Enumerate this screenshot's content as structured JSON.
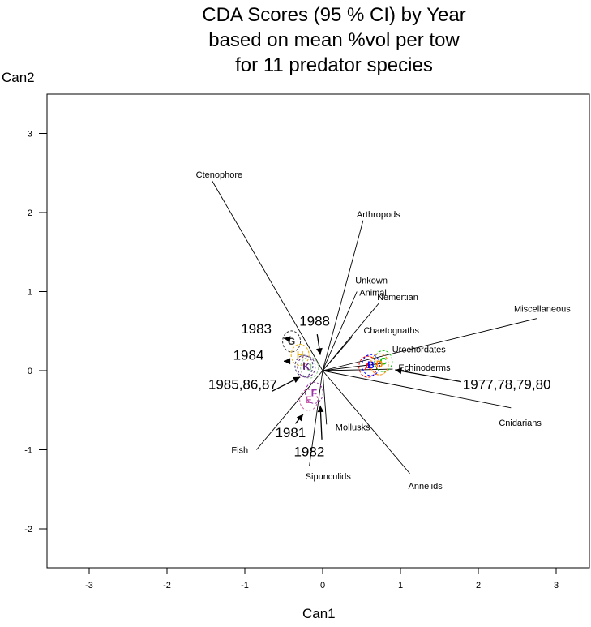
{
  "chart_data": {
    "type": "scatter",
    "title": [
      "CDA Scores (95 % CI) by Year",
      "based on mean %vol per tow",
      "for 11 predator species"
    ],
    "xlabel": "Can1",
    "ylabel": "Can2",
    "xlim": [
      -3.5,
      3.5
    ],
    "ylim": [
      -2.5,
      3.5
    ],
    "x_ticks": [
      -3,
      -2,
      -1,
      0,
      1,
      2,
      3
    ],
    "y_ticks": [
      -2,
      -1,
      0,
      1,
      2,
      3
    ],
    "x_tick_labels": [
      "-3",
      "-2",
      "-1",
      "0",
      "1",
      "2",
      "3"
    ],
    "y_tick_labels": [
      "-2",
      "-1",
      "0",
      "1",
      "2",
      "3"
    ],
    "vectors": [
      {
        "name": "Ctenophore",
        "x": -1.42,
        "y": 2.4
      },
      {
        "name": "Arthropods",
        "x": 0.52,
        "y": 1.9
      },
      {
        "name": "Unkown Animal",
        "x": 0.44,
        "y": 1.0
      },
      {
        "name": "Nemertian",
        "x": 0.72,
        "y": 0.85
      },
      {
        "name": "Chaetognaths",
        "x": 0.38,
        "y": 0.43
      },
      {
        "name": "Miscellaneous",
        "x": 2.75,
        "y": 0.66
      },
      {
        "name": "Urochordates",
        "x": 0.82,
        "y": 0.1
      },
      {
        "name": "Echinoderms",
        "x": 0.9,
        "y": 0.02
      },
      {
        "name": "Cnidarians",
        "x": 2.42,
        "y": -0.47
      },
      {
        "name": "Annelids",
        "x": 1.12,
        "y": -1.3
      },
      {
        "name": "Mollusks",
        "x": 0.05,
        "y": -0.68
      },
      {
        "name": "Sipunculids",
        "x": -0.17,
        "y": -1.2
      },
      {
        "name": "Fish",
        "x": -0.85,
        "y": -1.0
      }
    ],
    "groups": [
      {
        "letter": "A",
        "x": 0.58,
        "y": 0.05,
        "color": "#ff0000"
      },
      {
        "letter": "B",
        "x": 0.62,
        "y": 0.07,
        "color": "#0000ff"
      },
      {
        "letter": "C",
        "x": 0.78,
        "y": 0.12,
        "color": "#00c000"
      },
      {
        "letter": "D",
        "x": 0.73,
        "y": 0.08,
        "color": "#ff8800"
      },
      {
        "letter": "E",
        "x": -0.18,
        "y": -0.37,
        "color": "#cc66aa"
      },
      {
        "letter": "F",
        "x": -0.11,
        "y": -0.28,
        "color": "#9933aa"
      },
      {
        "letter": "G",
        "x": -0.4,
        "y": 0.37,
        "color": "#333333"
      },
      {
        "letter": "H",
        "x": -0.29,
        "y": 0.2,
        "color": "#e8b010"
      },
      {
        "letter": "I",
        "x": -0.24,
        "y": 0.06,
        "color": "#2a2a6a"
      },
      {
        "letter": "J",
        "x": -0.17,
        "y": 0.04,
        "color": "#99cc99"
      },
      {
        "letter": "K",
        "x": -0.21,
        "y": 0.05,
        "color": "#6a2a8a"
      }
    ],
    "annotations": [
      {
        "text": "1983",
        "x": -1.05,
        "y": 0.47,
        "ax": -0.43,
        "ay": 0.4,
        "tx": -0.5,
        "ty": 0.41
      },
      {
        "text": "1984",
        "x": -1.15,
        "y": 0.14,
        "ax": -0.45,
        "ay": 0.12,
        "tx": -0.5,
        "ty": 0.12
      },
      {
        "text": "1988",
        "x": -0.3,
        "y": 0.57,
        "ax": -0.07,
        "ay": 0.46,
        "tx": -0.03,
        "ty": 0.2
      },
      {
        "text": "1985,86,87",
        "x": -1.47,
        "y": -0.23,
        "ax": -0.65,
        "ay": -0.26,
        "tx": -0.29,
        "ty": -0.08
      },
      {
        "text": "1981",
        "x": -0.61,
        "y": -0.84,
        "ax": -0.35,
        "ay": -0.67,
        "tx": -0.25,
        "ty": -0.55
      },
      {
        "text": "1982",
        "x": -0.37,
        "y": -1.08,
        "ax": -0.01,
        "ay": -0.87,
        "tx": -0.03,
        "ty": -0.44
      },
      {
        "text": "1977,78,79,80",
        "x": 1.8,
        "y": -0.23,
        "ax": 1.78,
        "ay": -0.14,
        "tx": 0.93,
        "ty": 0.01
      }
    ]
  }
}
